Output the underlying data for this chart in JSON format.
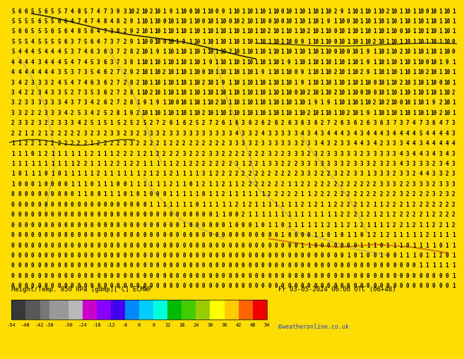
{
  "label_left": "Height/Temp. 850 hPa [gdmp][°C] ECMWF",
  "label_right": "Fr 03-05-2024 06:00 UTC (06+48)",
  "label_credit": "©weatheronline.co.uk",
  "colorbar_ticks": [
    -54,
    -48,
    -42,
    -38,
    -30,
    -24,
    -18,
    -12,
    -6,
    0,
    6,
    12,
    18,
    24,
    30,
    36,
    42,
    48,
    54
  ],
  "colorbar_colors": [
    "#383838",
    "#585858",
    "#787878",
    "#989898",
    "#b8b8b8",
    "#cc00cc",
    "#8800ff",
    "#4400ee",
    "#0088ff",
    "#00ccff",
    "#00ffdd",
    "#00bb00",
    "#44cc00",
    "#99cc00",
    "#ffff00",
    "#ffcc00",
    "#ff6600",
    "#ee0000",
    "#bb0000"
  ],
  "bg_color": "#ffdd00",
  "numbers_color": "#000000",
  "font_size": 5.5,
  "rows": 28,
  "cols": 68
}
